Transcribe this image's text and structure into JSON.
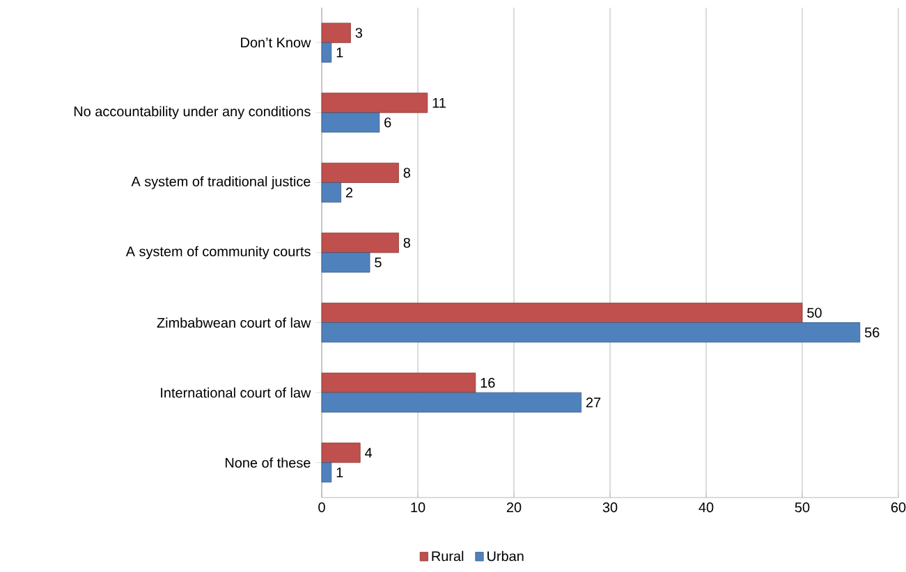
{
  "chart_data": {
    "type": "bar",
    "orientation": "horizontal",
    "categories": [
      "Don’t Know",
      "No accountability under any conditions",
      "A system of traditional justice",
      "A system of community courts",
      "Zimbabwean court of law",
      "International court of law",
      "None of these"
    ],
    "series": [
      {
        "name": "Rural",
        "color": "#c0504d",
        "values": [
          3,
          11,
          8,
          8,
          50,
          16,
          4
        ]
      },
      {
        "name": "Urban",
        "color": "#4f81bd",
        "values": [
          1,
          6,
          2,
          5,
          56,
          27,
          1
        ]
      }
    ],
    "xlim": [
      0,
      60
    ],
    "xticks": [
      0,
      10,
      20,
      30,
      40,
      50,
      60
    ],
    "grid": "x",
    "legend": "bottom",
    "data_labels": true
  }
}
